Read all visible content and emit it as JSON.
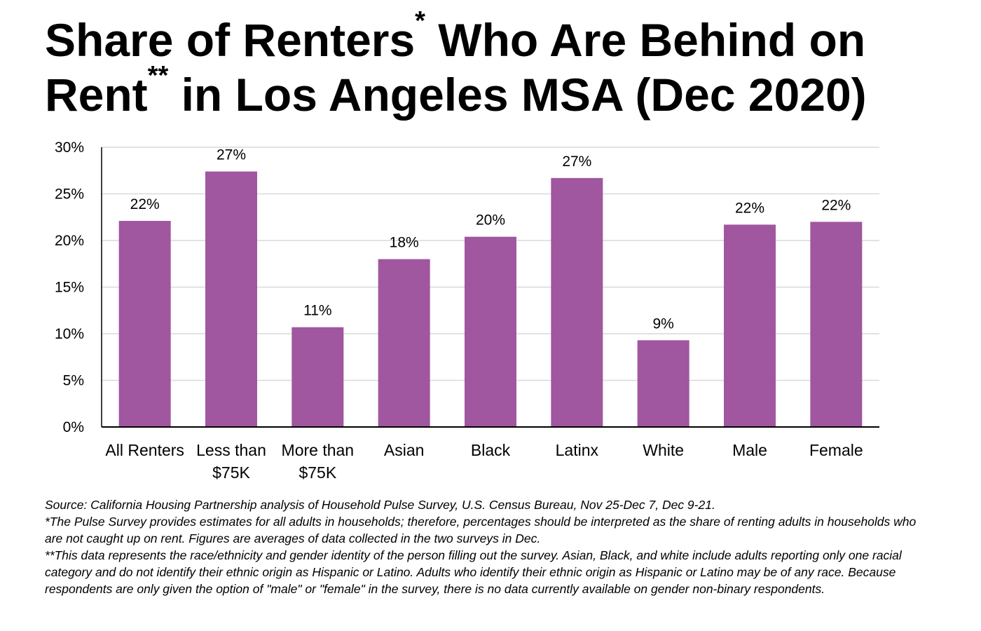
{
  "title": {
    "part1": "Share of Renters",
    "mark1": "*",
    "part2": " Who Are Behind on Rent",
    "mark2": "**",
    "part3": " in Los Angeles MSA (Dec 2020)"
  },
  "colors": {
    "bar": "#A0579F",
    "grid": "#D9D9D9",
    "axis": "#000000"
  },
  "chart_data": {
    "type": "bar",
    "title": "Share of Renters* Who Are Behind on Rent** in Los Angeles MSA (Dec 2020)",
    "xlabel": "",
    "ylabel": "",
    "ylim": [
      0,
      30
    ],
    "grid": true,
    "legend": "none",
    "y_ticks": [
      {
        "value": 0,
        "label": "0%"
      },
      {
        "value": 5,
        "label": "5%"
      },
      {
        "value": 10,
        "label": "10%"
      },
      {
        "value": 15,
        "label": "15%"
      },
      {
        "value": 20,
        "label": "20%"
      },
      {
        "value": 25,
        "label": "25%"
      },
      {
        "value": 30,
        "label": "30%"
      }
    ],
    "categories": [
      [
        "All Renters"
      ],
      [
        "Less than",
        "$75K"
      ],
      [
        "More than",
        "$75K"
      ],
      [
        "Asian"
      ],
      [
        "Black"
      ],
      [
        "Latinx"
      ],
      [
        "White"
      ],
      [
        "Male"
      ],
      [
        "Female"
      ]
    ],
    "values": [
      22.1,
      27.4,
      10.7,
      18.0,
      20.4,
      26.7,
      9.3,
      21.7,
      22.0
    ],
    "data_labels": [
      "22%",
      "27%",
      "11%",
      "18%",
      "20%",
      "27%",
      "9%",
      "22%",
      "22%"
    ]
  },
  "notes": [
    "Source: California Housing Partnership analysis of Household Pulse Survey, U.S. Census Bureau, Nov 25-Dec 7, Dec 9-21.",
    "*The Pulse Survey provides estimates for all adults in households; therefore, percentages should be interpreted as the share of renting adults in households who are not caught up on rent. Figures are averages of data collected in the two surveys in Dec.",
    "**This data represents the race/ethnicity and gender identity of the person filling out the survey. Asian, Black, and white include adults reporting only one racial category and do not identify their ethnic origin as Hispanic or Latino. Adults who identify their ethnic origin as Hispanic or Latino may be of any race. Because respondents are only given the option of \"male\" or \"female\" in the survey, there is no data currently available on gender non-binary respondents."
  ]
}
